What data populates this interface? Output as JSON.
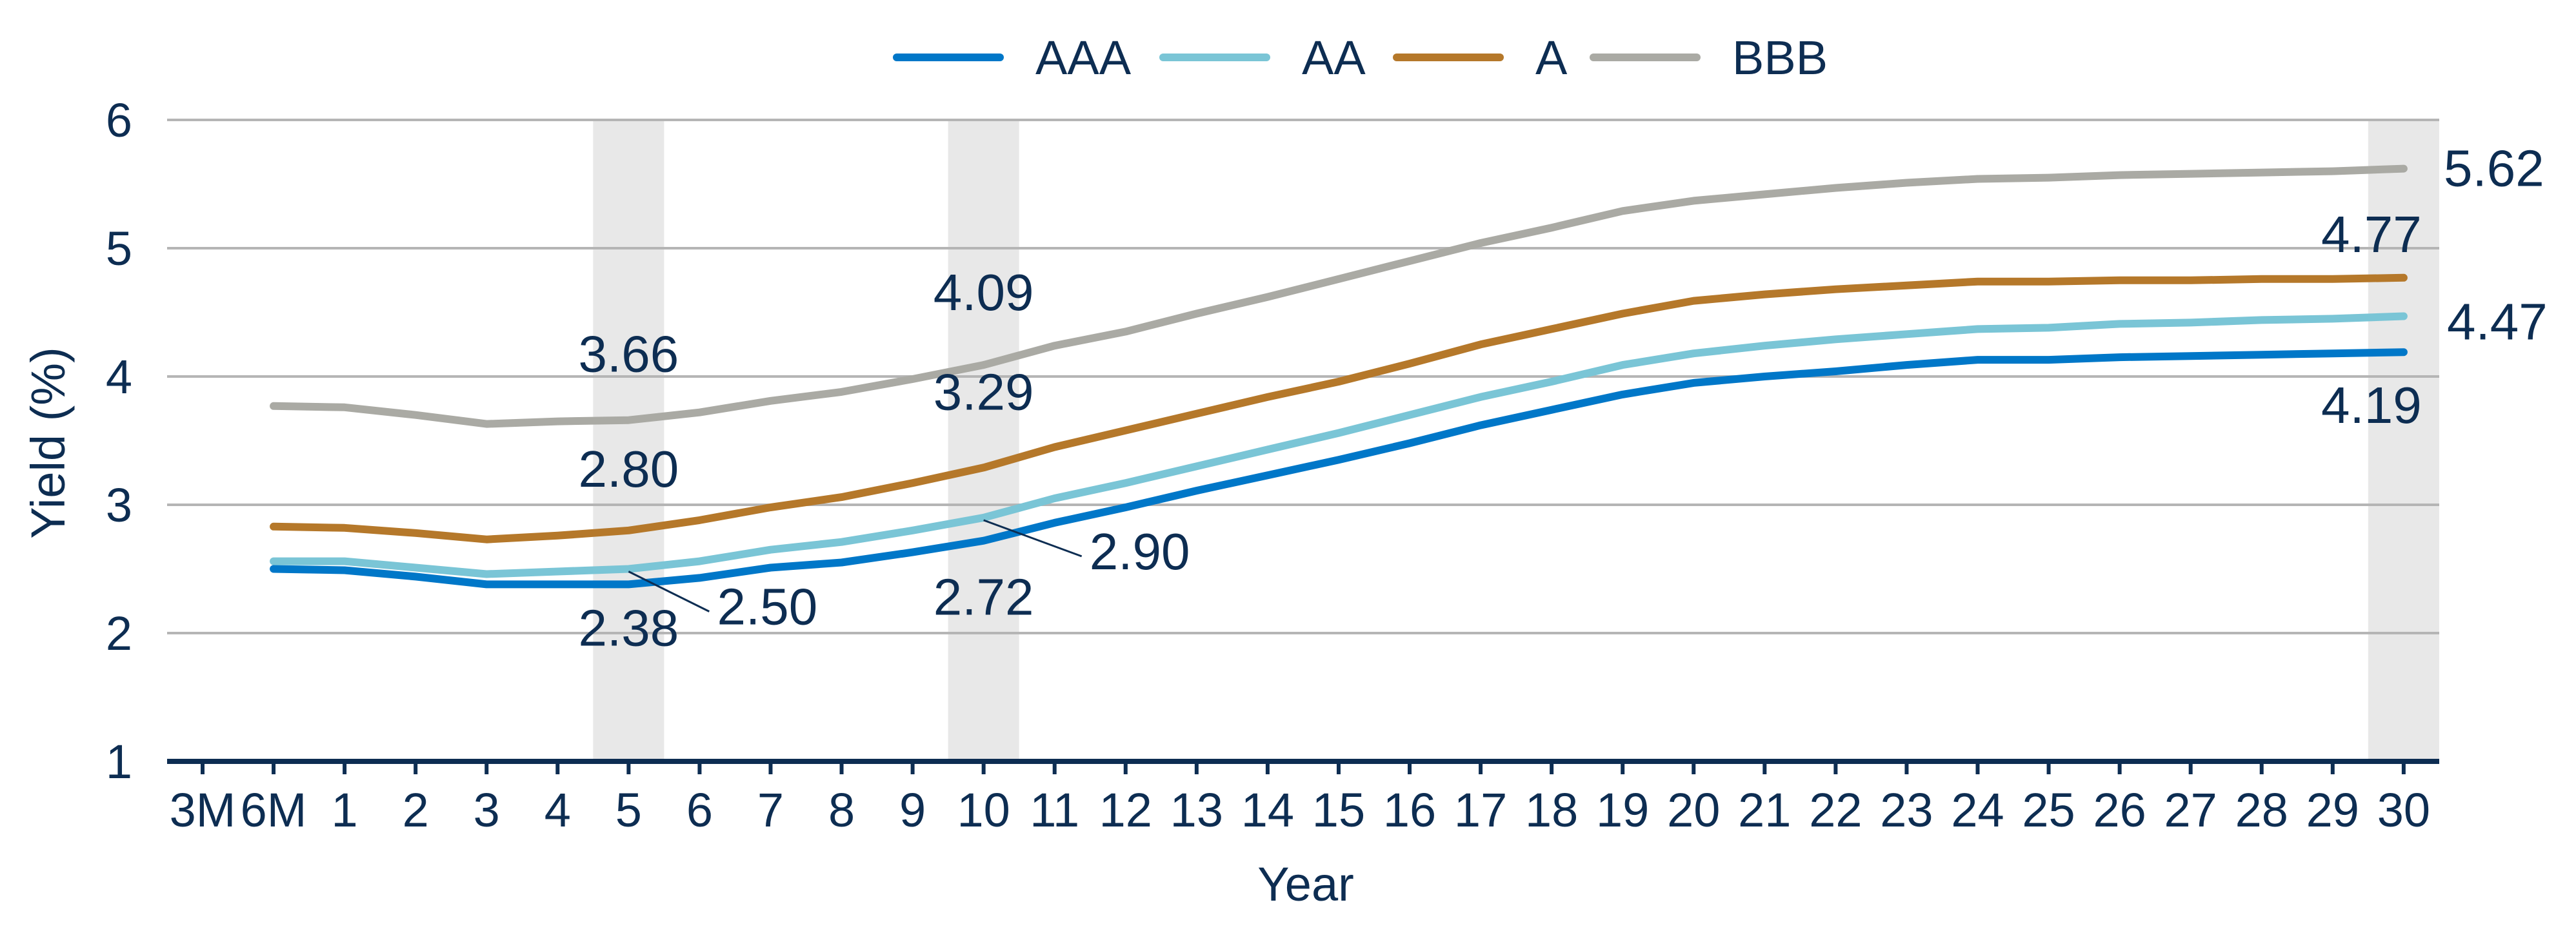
{
  "chart_data": {
    "type": "line",
    "title": "",
    "xlabel": "Year",
    "ylabel": "Yield (%)",
    "ylim": [
      1,
      6
    ],
    "yticks": [
      "1",
      "2",
      "3",
      "4",
      "5",
      "6"
    ],
    "grid": true,
    "legend_position": "top",
    "categories": [
      "3M",
      "6M",
      "1",
      "2",
      "3",
      "4",
      "5",
      "6",
      "7",
      "8",
      "9",
      "10",
      "11",
      "12",
      "13",
      "14",
      "15",
      "16",
      "17",
      "18",
      "19",
      "20",
      "21",
      "22",
      "23",
      "24",
      "25",
      "26",
      "27",
      "28",
      "29",
      "30"
    ],
    "highlighted_categories": [
      "5",
      "10",
      "30"
    ],
    "series": [
      {
        "name": "AAA",
        "color": "#0077c8",
        "values": [
          null,
          2.5,
          2.49,
          2.44,
          2.38,
          2.38,
          2.38,
          2.43,
          2.51,
          2.55,
          2.63,
          2.72,
          2.86,
          2.98,
          3.11,
          3.23,
          3.35,
          3.48,
          3.62,
          3.74,
          3.86,
          3.95,
          4.0,
          4.04,
          4.09,
          4.13,
          4.13,
          4.15,
          4.16,
          4.17,
          4.18,
          4.19
        ]
      },
      {
        "name": "AA",
        "color": "#7ac5d6",
        "values": [
          null,
          2.56,
          2.56,
          2.51,
          2.46,
          2.48,
          2.5,
          2.56,
          2.65,
          2.71,
          2.8,
          2.9,
          3.05,
          3.17,
          3.3,
          3.43,
          3.56,
          3.7,
          3.84,
          3.96,
          4.09,
          4.18,
          4.24,
          4.29,
          4.33,
          4.37,
          4.38,
          4.41,
          4.42,
          4.44,
          4.45,
          4.47
        ]
      },
      {
        "name": "A",
        "color": "#b5782a",
        "values": [
          null,
          2.83,
          2.82,
          2.78,
          2.73,
          2.76,
          2.8,
          2.88,
          2.98,
          3.06,
          3.17,
          3.29,
          3.45,
          3.58,
          3.71,
          3.84,
          3.96,
          4.1,
          4.25,
          4.37,
          4.49,
          4.59,
          4.64,
          4.68,
          4.71,
          4.74,
          4.74,
          4.75,
          4.75,
          4.76,
          4.76,
          4.77
        ]
      },
      {
        "name": "BBB",
        "color": "#aaaaa4",
        "values": [
          null,
          3.77,
          3.76,
          3.7,
          3.63,
          3.65,
          3.66,
          3.72,
          3.81,
          3.88,
          3.98,
          4.09,
          4.24,
          4.35,
          4.49,
          4.62,
          4.76,
          4.9,
          5.04,
          5.16,
          5.29,
          5.37,
          5.42,
          5.47,
          5.51,
          5.54,
          5.55,
          5.57,
          5.58,
          5.59,
          5.6,
          5.62
        ]
      }
    ],
    "annotations": [
      {
        "series": "BBB",
        "category": "5",
        "text": "3.66"
      },
      {
        "series": "A",
        "category": "5",
        "text": "2.80"
      },
      {
        "series": "AAA",
        "category": "5",
        "text": "2.38"
      },
      {
        "series": "AA",
        "category": "5",
        "text": "2.50"
      },
      {
        "series": "BBB",
        "category": "10",
        "text": "4.09"
      },
      {
        "series": "A",
        "category": "10",
        "text": "3.29"
      },
      {
        "series": "AAA",
        "category": "10",
        "text": "2.72"
      },
      {
        "series": "AA",
        "category": "10",
        "text": "2.90"
      },
      {
        "series": "BBB",
        "category": "30",
        "text": "5.62"
      },
      {
        "series": "A",
        "category": "30",
        "text": "4.77"
      },
      {
        "series": "AA",
        "category": "30",
        "text": "4.47"
      },
      {
        "series": "AAA",
        "category": "30",
        "text": "4.19"
      }
    ]
  }
}
